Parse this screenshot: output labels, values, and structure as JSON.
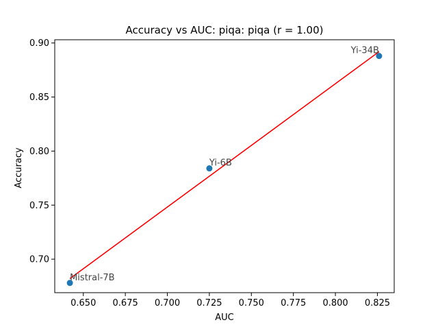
{
  "chart_data": {
    "type": "scatter",
    "title": "Accuracy vs AUC: piqa: piqa (r = 1.00)",
    "xlabel": "AUC",
    "ylabel": "Accuracy",
    "xlim": [
      0.633,
      0.835
    ],
    "ylim": [
      0.669,
      0.903
    ],
    "xticks": [
      0.65,
      0.675,
      0.7,
      0.725,
      0.75,
      0.775,
      0.8,
      0.825
    ],
    "xtick_labels": [
      "0.650",
      "0.675",
      "0.700",
      "0.725",
      "0.750",
      "0.775",
      "0.800",
      "0.825"
    ],
    "yticks": [
      0.7,
      0.75,
      0.8,
      0.85,
      0.9
    ],
    "ytick_labels": [
      "0.70",
      "0.75",
      "0.80",
      "0.85",
      "0.90"
    ],
    "points": [
      {
        "label": "Mistral-7B",
        "x": 0.642,
        "y": 0.678
      },
      {
        "label": "Yi-6B",
        "x": 0.725,
        "y": 0.784
      },
      {
        "label": "Yi-34B",
        "x": 0.826,
        "y": 0.888
      }
    ],
    "fit_line": {
      "x": [
        0.642,
        0.826
      ],
      "y": [
        0.682,
        0.892
      ]
    },
    "point_color": "#1f77b4",
    "fit_color": "#ff0000",
    "grid": false
  }
}
